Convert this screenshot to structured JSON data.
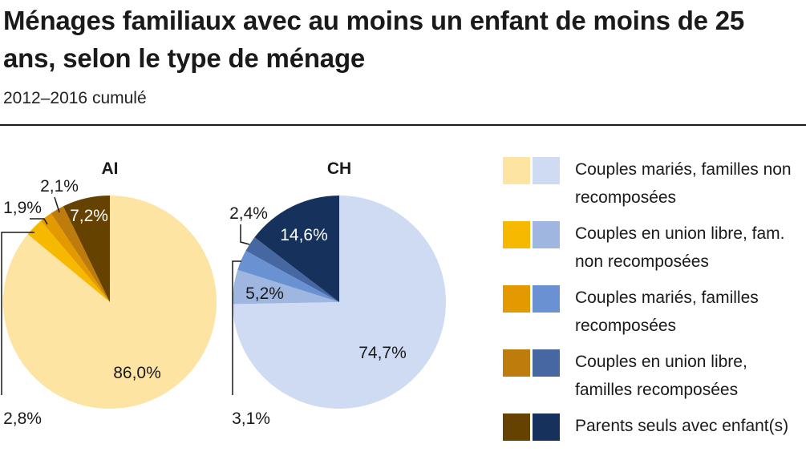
{
  "header": {
    "title": "Ménages familiaux avec au moins un enfant de moins de 25 ans, selon le type de ménage",
    "subtitle": "2012–2016 cumulé"
  },
  "legend": [
    {
      "label": "Couples mariés, familles non recomposées"
    },
    {
      "label": "Couples en union libre, fam. non recomposées"
    },
    {
      "label": "Couples mariés, familles recomposées"
    },
    {
      "label": "Couples en union libre, familles recomposées"
    },
    {
      "label": "Parents seuls avec enfant(s)"
    }
  ],
  "colors": {
    "ai": [
      "#fde4a2",
      "#f7b800",
      "#e39a00",
      "#bd7c0c",
      "#654200"
    ],
    "ch": [
      "#cfdbf2",
      "#9fb6e1",
      "#6a91d1",
      "#4767a3",
      "#16325c"
    ]
  },
  "chart_data": [
    {
      "type": "pie",
      "title": "AI",
      "categories": [
        "Couples mariés, familles non recomposées",
        "Couples en union libre, fam. non recomposées",
        "Couples mariés, familles recomposées",
        "Couples en union libre, familles recomposées",
        "Parents seuls avec enfant(s)"
      ],
      "values": [
        86.0,
        2.8,
        1.9,
        2.1,
        7.2
      ],
      "labels": [
        "86,0%",
        "2,8%",
        "1,9%",
        "2,1%",
        "7,2%"
      ]
    },
    {
      "type": "pie",
      "title": "CH",
      "categories": [
        "Couples mariés, familles non recomposées",
        "Couples en union libre, fam. non recomposées",
        "Couples mariés, familles recomposées",
        "Couples en union libre, familles recomposées",
        "Parents seuls avec enfant(s)"
      ],
      "values": [
        74.7,
        5.2,
        3.1,
        2.4,
        14.6
      ],
      "labels": [
        "74,7%",
        "5,2%",
        "3,1%",
        "2,4%",
        "14,6%"
      ]
    }
  ]
}
